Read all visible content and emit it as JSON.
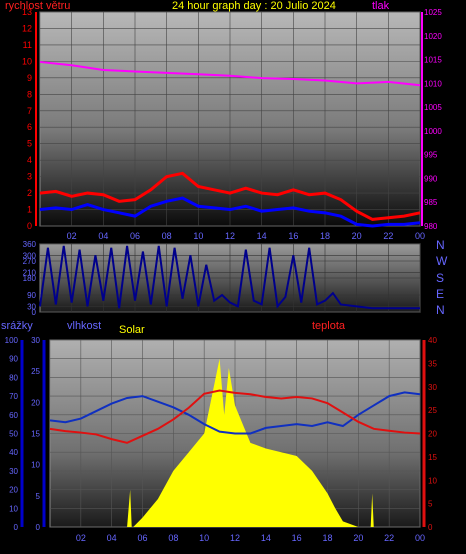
{
  "header": {
    "wind_label": "rychlost větru",
    "title": "24 hour graph day : 20 Julio 2024",
    "pressure_label": "tlak"
  },
  "footer_labels": {
    "rain": "srážky",
    "humidity": "vlhkost",
    "solar": "Solar",
    "temperature": "teplota"
  },
  "compass": [
    "N",
    "W",
    "S",
    "E",
    "N"
  ],
  "colors": {
    "wind_axis": "#ff0000",
    "pressure": "#ff00ff",
    "gust": "#ff0000",
    "wind": "#0000ff",
    "direction": "#00008b",
    "humidity": "#1030c0",
    "temperature": "#e01010",
    "solar": "#ffff00",
    "rain_axis": "#0000cc",
    "title": "#ffff00"
  },
  "chart_data": [
    {
      "type": "line",
      "name": "wind_pressure",
      "x_ticks": [
        "02",
        "04",
        "06",
        "08",
        "10",
        "12",
        "14",
        "16",
        "18",
        "20",
        "22",
        "00"
      ],
      "y_left_ticks": [
        0,
        1,
        2,
        3,
        4,
        5,
        6,
        7,
        8,
        9,
        10,
        11,
        12,
        13
      ],
      "y_left_range": [
        0,
        13
      ],
      "y_right_ticks": [
        980,
        985,
        990,
        995,
        1000,
        1005,
        1010,
        1015,
        1020,
        1025
      ],
      "y_right_range": [
        980,
        1025
      ],
      "grid": true,
      "pressure": {
        "x": [
          0,
          2,
          4,
          6,
          8,
          10,
          12,
          14,
          16,
          18,
          20,
          22,
          24
        ],
        "y": [
          1014.5,
          1013.8,
          1012.8,
          1012.5,
          1012.2,
          1011.9,
          1011.6,
          1011.1,
          1010.9,
          1010.6,
          1010.0,
          1010.3,
          1009.6
        ]
      },
      "wind_gust": {
        "x": [
          0,
          1,
          2,
          3,
          4,
          5,
          6,
          7,
          8,
          9,
          10,
          11,
          12,
          13,
          14,
          15,
          16,
          17,
          18,
          19,
          20,
          21,
          22,
          23,
          24
        ],
        "y": [
          2.0,
          2.1,
          1.8,
          2.0,
          1.9,
          1.5,
          1.6,
          2.2,
          3.0,
          3.2,
          2.4,
          2.2,
          2.0,
          2.3,
          2.0,
          1.9,
          2.2,
          1.9,
          2.0,
          1.6,
          0.9,
          0.4,
          0.5,
          0.6,
          0.8
        ]
      },
      "wind_avg": {
        "x": [
          0,
          1,
          2,
          3,
          4,
          5,
          6,
          7,
          8,
          9,
          10,
          11,
          12,
          13,
          14,
          15,
          16,
          17,
          18,
          19,
          20,
          21,
          22,
          23,
          24
        ],
        "y": [
          1.0,
          1.1,
          1.0,
          1.3,
          1.0,
          0.8,
          0.6,
          1.2,
          1.5,
          1.7,
          1.2,
          1.1,
          1.0,
          1.2,
          0.9,
          1.0,
          1.1,
          0.9,
          0.8,
          0.6,
          0.1,
          0.0,
          0.1,
          0.1,
          0.2
        ]
      }
    },
    {
      "type": "line",
      "name": "wind_direction",
      "x_ticks": [
        "02",
        "04",
        "06",
        "08",
        "10",
        "12",
        "14",
        "16",
        "18",
        "20",
        "22",
        "00"
      ],
      "y_ticks": [
        0,
        30,
        90,
        180,
        210,
        270,
        300,
        360
      ],
      "y_range": [
        0,
        360
      ],
      "direction": {
        "x": [
          0,
          0.5,
          1,
          1.5,
          2,
          2.5,
          3,
          3.5,
          4,
          4.5,
          5,
          5.5,
          6,
          6.5,
          7,
          7.5,
          8,
          8.5,
          9,
          9.5,
          10,
          10.5,
          11,
          11.5,
          12,
          12.5,
          13,
          13.5,
          14,
          14.5,
          15,
          15.5,
          16,
          16.5,
          17,
          17.5,
          18,
          18.5,
          19,
          20,
          21,
          22,
          23,
          24
        ],
        "y": [
          30,
          340,
          40,
          350,
          50,
          330,
          30,
          300,
          60,
          340,
          20,
          350,
          60,
          320,
          40,
          350,
          30,
          340,
          70,
          300,
          30,
          250,
          60,
          90,
          50,
          30,
          330,
          60,
          40,
          340,
          30,
          80,
          300,
          50,
          340,
          40,
          60,
          100,
          40,
          30,
          20,
          20,
          20,
          20
        ]
      }
    },
    {
      "type": "line",
      "name": "temp_humidity_solar",
      "x_ticks": [
        "02",
        "04",
        "06",
        "08",
        "10",
        "12",
        "14",
        "16",
        "18",
        "20",
        "22",
        "00"
      ],
      "y_rain_ticks": [
        0,
        10,
        20,
        30,
        40,
        50,
        60,
        70,
        80,
        90,
        100
      ],
      "y_rain_range": [
        0,
        100
      ],
      "y_humidity_ticks": [
        0,
        5,
        10,
        15,
        20,
        25,
        30
      ],
      "y_humidity_range": [
        0,
        30
      ],
      "y_humidity_scale_ticks": [
        0,
        10,
        20,
        30,
        40,
        50,
        60,
        70,
        80,
        90
      ],
      "y_temp_ticks": [
        0,
        5,
        10,
        15,
        20,
        25,
        30,
        35,
        40
      ],
      "y_temp_range": [
        0,
        40
      ],
      "humidity": {
        "x": [
          0,
          1,
          2,
          3,
          4,
          5,
          6,
          7,
          8,
          9,
          10,
          11,
          12,
          13,
          14,
          15,
          16,
          17,
          18,
          19,
          20,
          21,
          22,
          23,
          24
        ],
        "y": [
          57,
          56,
          58,
          62,
          66,
          69,
          70,
          67,
          64,
          60,
          55,
          51,
          50,
          50,
          53,
          54,
          55,
          54,
          56,
          54,
          60,
          65,
          70,
          72,
          71
        ]
      },
      "temperature": {
        "x": [
          0,
          1,
          2,
          3,
          4,
          5,
          6,
          7,
          8,
          9,
          10,
          11,
          12,
          13,
          14,
          15,
          16,
          17,
          18,
          19,
          20,
          21,
          22,
          23,
          24
        ],
        "y": [
          21,
          20.5,
          20.2,
          19.8,
          18.8,
          18,
          19.5,
          21,
          23,
          25.5,
          28.5,
          29.2,
          28.7,
          28.4,
          27.8,
          27.5,
          27.8,
          27.5,
          26.5,
          24.5,
          22.5,
          21,
          20.6,
          20.2,
          20
        ]
      },
      "solar": {
        "x": [
          0,
          4,
          5,
          5.2,
          5.3,
          5.4,
          6,
          7,
          8,
          9,
          10,
          10.5,
          11,
          11.3,
          11.6,
          12,
          13,
          14,
          15,
          16,
          17,
          18,
          18.5,
          19,
          20,
          20.8,
          20.9,
          21,
          22,
          24
        ],
        "y": [
          0,
          0,
          0,
          20,
          0,
          0,
          5,
          15,
          30,
          40,
          50,
          70,
          90,
          60,
          85,
          65,
          45,
          42,
          40,
          38,
          30,
          18,
          10,
          3,
          0,
          0,
          18,
          0,
          0,
          0
        ]
      }
    }
  ]
}
